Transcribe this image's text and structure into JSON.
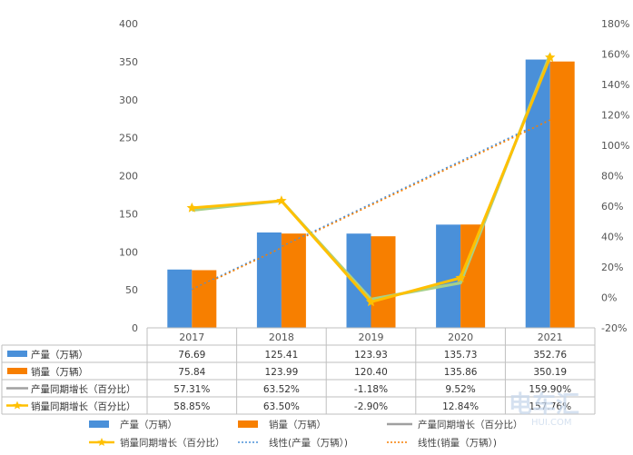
{
  "chart_data": {
    "type": "bar",
    "categories": [
      "2017",
      "2018",
      "2019",
      "2020",
      "2021"
    ],
    "y_left": {
      "ylim": [
        0,
        400
      ],
      "ticks": [
        "0",
        "50",
        "100",
        "150",
        "200",
        "250",
        "300",
        "350",
        "400"
      ]
    },
    "y_right": {
      "ylim": [
        -20,
        180
      ],
      "ticks": [
        "-20%",
        "0%",
        "20%",
        "40%",
        "60%",
        "80%",
        "100%",
        "120%",
        "140%",
        "160%",
        "180%"
      ]
    },
    "series": [
      {
        "name": "产量（万辆）",
        "kind": "bar",
        "axis": "left",
        "color": "#4a90d9",
        "values": [
          76.69,
          125.41,
          123.93,
          135.73,
          352.76
        ],
        "labels": [
          "76.69",
          "125.41",
          "123.93",
          "135.73",
          "352.76"
        ]
      },
      {
        "name": "销量（万辆）",
        "kind": "bar",
        "axis": "left",
        "color": "#f77f00",
        "values": [
          75.84,
          123.99,
          120.4,
          135.86,
          350.19
        ],
        "labels": [
          "75.84",
          "123.99",
          "120.40",
          "135.86",
          "350.19"
        ]
      },
      {
        "name": "产量同期增长（百分比）",
        "kind": "line",
        "axis": "right",
        "color": "#a6d08a",
        "values": [
          57.31,
          63.52,
          -1.18,
          9.52,
          159.9
        ],
        "labels": [
          "57.31%",
          "63.52%",
          "-1.18%",
          "9.52%",
          "159.90%"
        ]
      },
      {
        "name": "销量同期增长（百分比）",
        "kind": "line",
        "axis": "right",
        "color": "#ffc000",
        "values": [
          58.85,
          63.5,
          -2.9,
          12.84,
          157.76
        ],
        "labels": [
          "58.85%",
          "63.50%",
          "-2.90%",
          "12.84%",
          "157.76%"
        ]
      }
    ],
    "trendlines": [
      {
        "name": "线性(产量（万辆）)",
        "of": "产量（万辆）",
        "color": "#4a90d9",
        "style": "dotted"
      },
      {
        "name": "线性(销量（万辆）)",
        "of": "销量（万辆）",
        "color": "#f77f00",
        "style": "dotted"
      }
    ],
    "data_table": true,
    "grid": false,
    "legend_position": "bottom"
  },
  "legend": {
    "items": [
      {
        "label": "产量（万辆）",
        "marker": "bar",
        "color": "#4a90d9"
      },
      {
        "label": "销量（万辆）",
        "marker": "bar",
        "color": "#f77f00"
      },
      {
        "label": "产量同期增长（百分比）",
        "marker": "line",
        "color": "#a0a0a0"
      },
      {
        "label": "销量同期增长（百分比）",
        "marker": "line-star",
        "color": "#ffc000"
      },
      {
        "label": "线性(产量（万辆）)",
        "marker": "dotted",
        "color": "#4a90d9"
      },
      {
        "label": "线性(销量（万辆）)",
        "marker": "dotted",
        "color": "#f77f00"
      }
    ]
  },
  "watermark": {
    "text": "电车汇",
    "subtext": "HUI.COM"
  }
}
